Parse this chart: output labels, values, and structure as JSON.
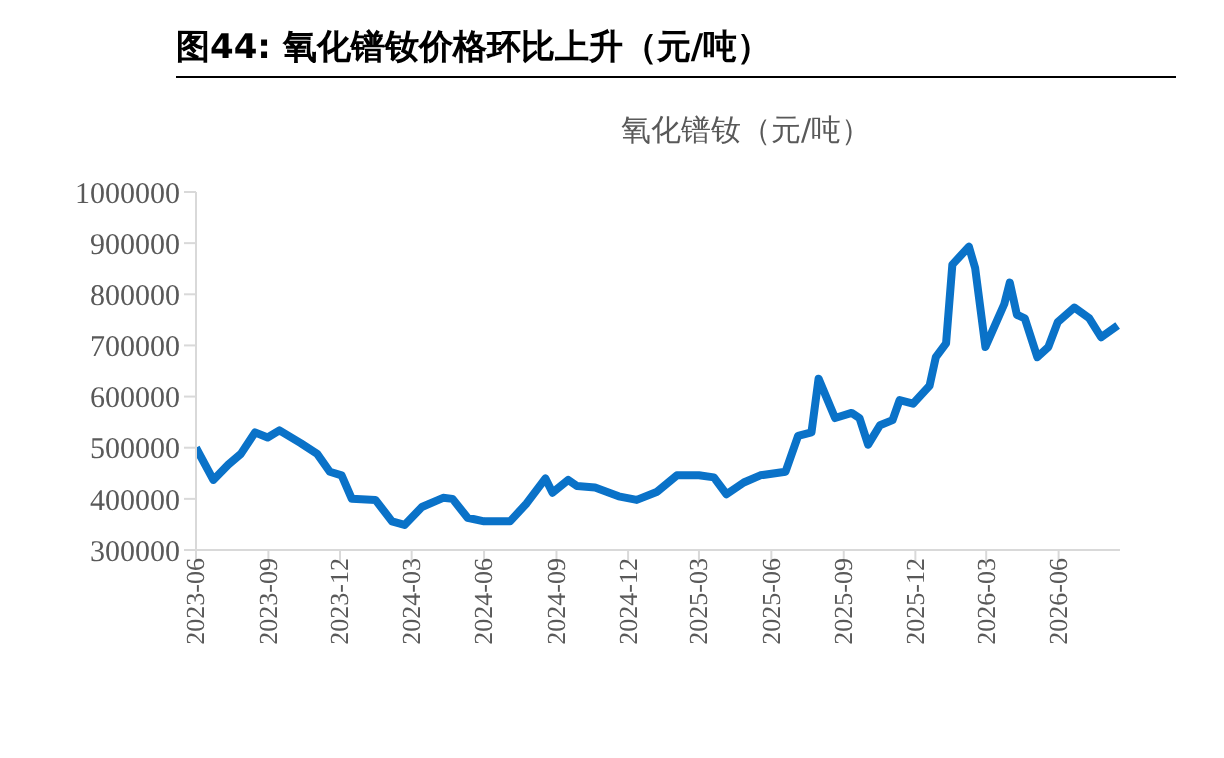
{
  "chart_data": {
    "type": "line",
    "title": "图44: 氧化镨钕价格环比上升（元/吨）",
    "subtitle": "氧化镨钕（元/吨）",
    "x": [
      "2023-06-01",
      "2023-06-23",
      "2023-07-12",
      "2023-07-28",
      "2023-08-15",
      "2023-08-31",
      "2023-09-15",
      "2023-10-12",
      "2023-11-02",
      "2023-11-18",
      "2023-12-03",
      "2023-12-16",
      "2024-01-15",
      "2024-02-05",
      "2024-02-21",
      "2024-03-14",
      "2024-04-10",
      "2024-04-22",
      "2024-05-11",
      "2024-06-01",
      "2024-07-04",
      "2024-07-25",
      "2024-08-18",
      "2024-08-27",
      "2024-09-16",
      "2024-09-27",
      "2024-10-20",
      "2024-11-19",
      "2024-12-12",
      "2025-01-07",
      "2025-02-01",
      "2025-03-01",
      "2025-03-20",
      "2025-04-05",
      "2025-04-27",
      "2025-05-18",
      "2025-06-19",
      "2025-07-05",
      "2025-07-22",
      "2025-07-31",
      "2025-08-21",
      "2025-09-11",
      "2025-09-21",
      "2025-10-02",
      "2025-10-17",
      "2025-11-02",
      "2025-11-11",
      "2025-11-28",
      "2025-12-19",
      "2025-12-27",
      "2026-01-09",
      "2026-01-17",
      "2026-02-07",
      "2026-02-15",
      "2026-02-28",
      "2026-03-14",
      "2026-03-24",
      "2026-03-31",
      "2026-04-09",
      "2026-04-19",
      "2026-05-05",
      "2026-05-19",
      "2026-05-31",
      "2026-06-21",
      "2026-07-10",
      "2026-07-25",
      "2026-08-15"
    ],
    "series": [
      {
        "color": "#0a72c8",
        "values": [
          500000,
          437000,
          467000,
          488000,
          530000,
          520000,
          534000,
          509000,
          488000,
          453000,
          446000,
          400000,
          398000,
          356000,
          349000,
          384000,
          402000,
          400000,
          363000,
          356000,
          356000,
          391000,
          440000,
          412000,
          437000,
          425000,
          422000,
          405000,
          398000,
          414000,
          446000,
          446000,
          442000,
          409000,
          432000,
          446000,
          453000,
          523000,
          530000,
          635000,
          558000,
          568000,
          558000,
          506000,
          544000,
          554000,
          593000,
          586000,
          621000,
          677000,
          704000,
          858000,
          893000,
          851000,
          697000,
          746000,
          781000,
          823000,
          760000,
          753000,
          677000,
          697000,
          746000,
          774000,
          753000,
          716000,
          739000
        ]
      }
    ],
    "xlim": [
      "2023-06-01",
      "2026-08-18"
    ],
    "xticks": [
      {
        "value": "2023-06-01",
        "label": "2023-06"
      },
      {
        "value": "2023-09-01",
        "label": "2023-09"
      },
      {
        "value": "2023-12-01",
        "label": "2023-12"
      },
      {
        "value": "2024-03-01",
        "label": "2024-03"
      },
      {
        "value": "2024-06-01",
        "label": "2024-06"
      },
      {
        "value": "2024-09-01",
        "label": "2024-09"
      },
      {
        "value": "2024-12-01",
        "label": "2024-12"
      },
      {
        "value": "2025-03-01",
        "label": "2025-03"
      },
      {
        "value": "2025-06-01",
        "label": "2025-06"
      },
      {
        "value": "2025-09-01",
        "label": "2025-09"
      },
      {
        "value": "2025-12-01",
        "label": "2025-12"
      },
      {
        "value": "2026-03-01",
        "label": "2026-03"
      },
      {
        "value": "2026-06-01",
        "label": "2026-06"
      }
    ],
    "ylim": [
      300000,
      1000000
    ],
    "yticks": [
      300000,
      400000,
      500000,
      600000,
      700000,
      800000,
      900000,
      1000000
    ],
    "grid": false,
    "legend": false,
    "marker": "none",
    "line_style": "solid"
  }
}
